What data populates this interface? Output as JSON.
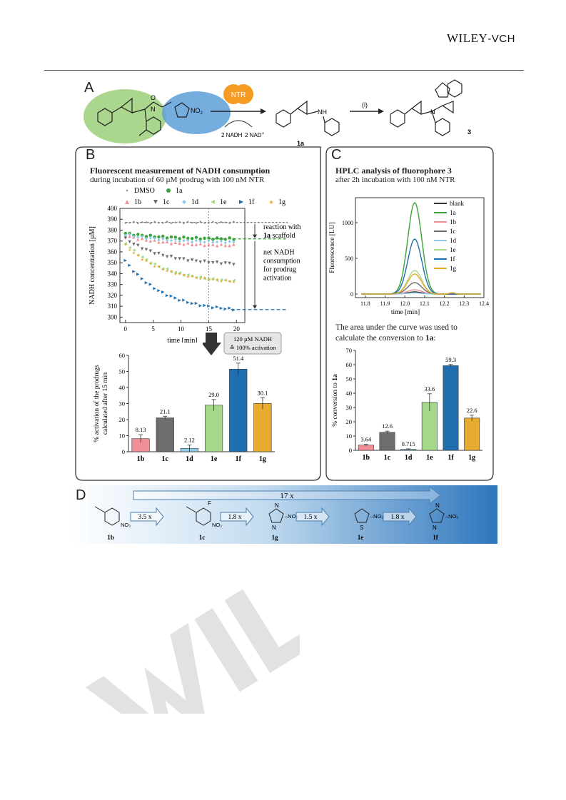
{
  "header": {
    "publisher_main": "WILEY",
    "publisher_sub": "-VCH"
  },
  "panelA": {
    "letter": "A",
    "enzyme": "NTR",
    "cofactor_left": "2 NADH",
    "cofactor_right": "2 NAD",
    "cofactor_right_sup": "+",
    "product_label": "1a",
    "step_label": "(i)",
    "fluorophore_label": "3",
    "atoms": {
      "N": "N",
      "O": "O",
      "NH": "NH",
      "NO2": "NO",
      "NO2_sub": "2"
    }
  },
  "panelB": {
    "letter": "B",
    "title": "Fluorescent measurement of NADH consumption",
    "subtitle": "during incubation of 60 µM prodrug with 100 nM NTR",
    "legend": [
      "DMSO",
      "1a",
      "1b",
      "1c",
      "1d",
      "1e",
      "1f",
      "1g"
    ],
    "ylabel": "NADH concentration [µM]",
    "xlabel": "time [min]",
    "annotation_reaction_line1": "reaction with",
    "annotation_reaction_bold": "1a",
    "annotation_reaction_rest": " scaffold",
    "annotation_net": [
      "net NADH",
      "consumption",
      "for prodrug",
      "activation"
    ],
    "callout_line1": "120 µM NADH",
    "callout_line2": "≙ 100% activation",
    "bar_ylabel_line1": "% activation of the prodrugs",
    "bar_ylabel_line2": "calculated after 15 min"
  },
  "panelC": {
    "letter": "C",
    "title": "HPLC analysis of fluorophore 3",
    "subtitle": "after 2h incubation with 100 nM NTR",
    "ylabel": "Fluorescence [LU]",
    "xlabel": "time [min]",
    "legend": [
      "blank",
      "1a",
      "1b",
      "1c",
      "1d",
      "1e",
      "1f",
      "1g"
    ],
    "note_line1": "The area under the curve was used to",
    "note_line2": "calculate the conversion to ",
    "note_bold": "1a",
    "note_colon": ":",
    "bar_ylabel": "% conversion to ",
    "bar_ylabel_bold": "1a"
  },
  "panelD": {
    "letter": "D",
    "overall_factor": "17 x",
    "steps": [
      "3.5 x",
      "1.8 x",
      "1.5 x",
      "1.8 x"
    ],
    "compounds": [
      "1b",
      "1c",
      "1g",
      "1e",
      "1f"
    ],
    "substituents": {
      "F": "F",
      "N": "N",
      "S": "S"
    }
  },
  "colors": {
    "1a": "#3aa33a",
    "1b": "#f08f95",
    "1c": "#6d6d6d",
    "1d": "#8fc9e6",
    "1e": "#a5d88a",
    "1f": "#1f6fb0",
    "1g": "#e7ab2f",
    "DMSO": "#888888",
    "blank": "#333333",
    "nadh_green": "#9ccf7a",
    "nadh_blue": "#5d9fd9",
    "ntr_orange": "#f59a23",
    "panelD_blue": "#3f86c8"
  },
  "chart_data": [
    {
      "id": "nadh_timecourse",
      "type": "scatter",
      "xlabel": "time [min]",
      "ylabel": "NADH concentration [µM]",
      "xlim": [
        -1,
        21.5
      ],
      "ylim": [
        295,
        400
      ],
      "xticks": [
        0,
        5,
        10,
        15,
        20
      ],
      "yticks": [
        300,
        310,
        320,
        330,
        340,
        350,
        360,
        370,
        380,
        390,
        400
      ],
      "reference_lines": {
        "DMSO_level": 387,
        "1a_level": 372,
        "1f_level": 307,
        "time_marker": 15
      },
      "series": [
        {
          "name": "DMSO",
          "start": 387,
          "end": 387
        },
        {
          "name": "1a",
          "start": 377,
          "end": 372
        },
        {
          "name": "1b",
          "start": 375,
          "end": 366
        },
        {
          "name": "1c",
          "start": 372,
          "end": 349
        },
        {
          "name": "1d",
          "start": 376,
          "end": 369
        },
        {
          "name": "1e",
          "start": 368,
          "end": 333
        },
        {
          "name": "1f",
          "start": 352,
          "end": 307
        },
        {
          "name": "1g",
          "start": 366,
          "end": 333
        }
      ]
    },
    {
      "id": "activation_bar",
      "type": "bar",
      "ylabel": "% activation of the prodrugs calculated after 15 min",
      "categories": [
        "1b",
        "1c",
        "1d",
        "1e",
        "1f",
        "1g"
      ],
      "values": [
        8.13,
        21.1,
        2.12,
        29.0,
        51.4,
        30.1
      ],
      "errors": [
        2.5,
        1.0,
        2.0,
        3.5,
        3.8,
        3.5
      ],
      "labels": [
        "8.13",
        "21.1",
        "2.12",
        "29.0",
        "51.4",
        "30.1"
      ],
      "ylim": [
        0,
        60
      ],
      "yticks": [
        0,
        10,
        20,
        30,
        40,
        50,
        60
      ]
    },
    {
      "id": "hplc_chromatogram",
      "type": "line",
      "xlabel": "time [min]",
      "ylabel": "Fluorescence [LU]",
      "xlim": [
        11.75,
        12.4
      ],
      "ylim": [
        -50,
        1350
      ],
      "xticks": [
        11.8,
        11.9,
        12.0,
        12.1,
        12.2,
        12.3,
        12.4
      ],
      "yticks": [
        0,
        500,
        1000
      ],
      "peak_center": 12.05,
      "series": [
        {
          "name": "blank",
          "peak": 30
        },
        {
          "name": "1a",
          "peak": 1280
        },
        {
          "name": "1b",
          "peak": 60
        },
        {
          "name": "1c",
          "peak": 160
        },
        {
          "name": "1d",
          "peak": 15
        },
        {
          "name": "1e",
          "peak": 330
        },
        {
          "name": "1f",
          "peak": 770
        },
        {
          "name": "1g",
          "peak": 280
        }
      ]
    },
    {
      "id": "conversion_bar",
      "type": "bar",
      "ylabel": "% conversion to 1a",
      "categories": [
        "1b",
        "1c",
        "1d",
        "1e",
        "1f",
        "1g"
      ],
      "values": [
        3.64,
        12.6,
        0.715,
        33.6,
        59.3,
        22.6
      ],
      "errors": [
        0.5,
        0.8,
        0.3,
        6.0,
        0.8,
        2.0
      ],
      "labels": [
        "3.64",
        "12.6",
        "0.715",
        "33.6",
        "59.3",
        "22.6"
      ],
      "ylim": [
        0,
        70
      ],
      "yticks": [
        0,
        10,
        20,
        30,
        40,
        50,
        60,
        70
      ]
    }
  ]
}
